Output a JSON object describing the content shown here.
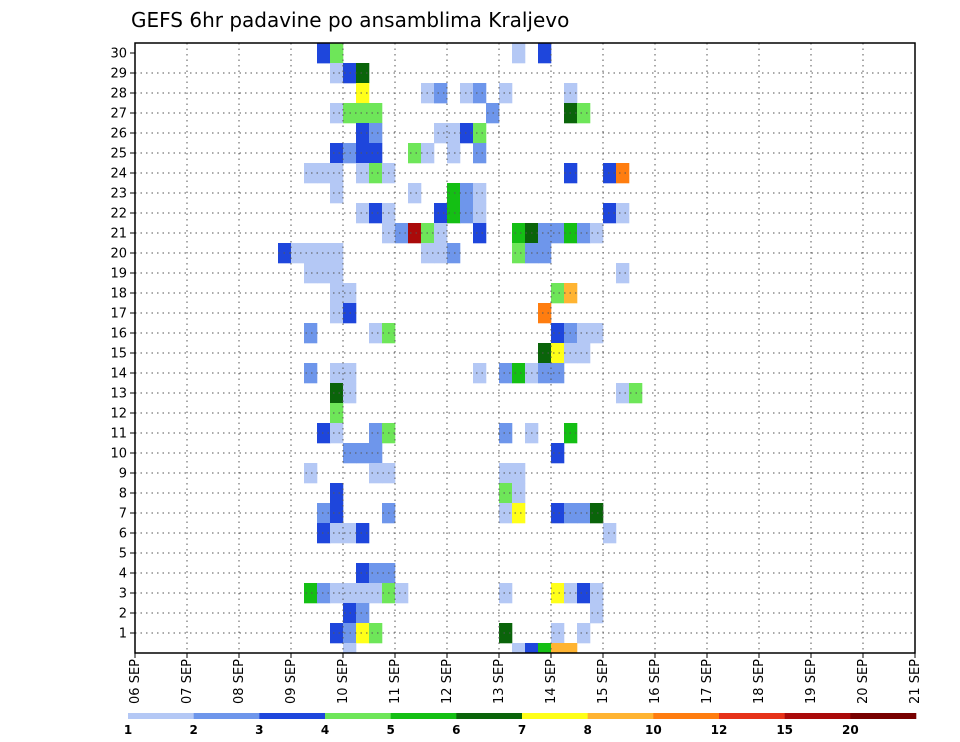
{
  "chart_data": {
    "type": "heatmap",
    "title": "GEFS 6hr padavine po ansamblima Kraljevo",
    "xlabel": "",
    "ylabel": "",
    "x_tick_labels": [
      "06 SEP",
      "07 SEP",
      "08 SEP",
      "09 SEP",
      "10 SEP",
      "11 SEP",
      "12 SEP",
      "13 SEP",
      "14 SEP",
      "15 SEP",
      "16 SEP",
      "17 SEP",
      "18 SEP",
      "19 SEP",
      "20 SEP",
      "21 SEP"
    ],
    "y_tick_labels": [
      "1",
      "2",
      "3",
      "4",
      "5",
      "6",
      "7",
      "8",
      "9",
      "10",
      "11",
      "12",
      "13",
      "14",
      "15",
      "16",
      "17",
      "18",
      "19",
      "20",
      "21",
      "22",
      "23",
      "24",
      "25",
      "26",
      "27",
      "28",
      "29",
      "30"
    ],
    "x_range_days": [
      0,
      15
    ],
    "step_days": 0.25,
    "y_range": [
      0,
      30
    ],
    "grid": true,
    "legend": {
      "position": "bottom",
      "thresholds": [
        "1",
        "2",
        "3",
        "4",
        "5",
        "6",
        "7",
        "8",
        "10",
        "12",
        "15",
        "20"
      ],
      "colors": [
        "#b4c8f5",
        "#6e96eb",
        "#1e46dc",
        "#6ee659",
        "#14bf14",
        "#0a640a",
        "#ffff19",
        "#ffb432",
        "#ff7d0f",
        "#e63219",
        "#aa0a0a",
        "#780000"
      ]
    },
    "cells": [
      [
        14,
        30,
        2
      ],
      [
        14,
        30,
        3
      ],
      [
        15,
        30,
        4
      ],
      [
        29,
        30,
        1
      ],
      [
        31,
        30,
        3
      ],
      [
        15,
        29,
        1
      ],
      [
        16,
        29,
        3
      ],
      [
        17,
        29,
        6
      ],
      [
        17,
        28,
        7
      ],
      [
        22,
        28,
        1
      ],
      [
        23,
        28,
        1
      ],
      [
        25,
        28,
        1
      ],
      [
        26,
        28,
        2
      ],
      [
        23,
        28,
        2
      ],
      [
        33,
        28,
        1
      ],
      [
        28,
        28,
        1
      ],
      [
        15,
        27,
        1
      ],
      [
        16,
        27,
        4
      ],
      [
        17,
        27,
        4
      ],
      [
        18,
        27,
        4
      ],
      [
        27,
        27,
        2
      ],
      [
        33,
        27,
        6
      ],
      [
        34,
        27,
        4
      ],
      [
        17,
        26,
        3
      ],
      [
        18,
        26,
        2
      ],
      [
        23,
        26,
        1
      ],
      [
        24,
        26,
        1
      ],
      [
        25,
        26,
        3
      ],
      [
        26,
        26,
        4
      ],
      [
        15,
        25,
        3
      ],
      [
        16,
        25,
        2
      ],
      [
        17,
        25,
        3
      ],
      [
        18,
        25,
        3
      ],
      [
        21,
        25,
        4
      ],
      [
        22,
        25,
        1
      ],
      [
        24,
        25,
        1
      ],
      [
        26,
        25,
        2
      ],
      [
        13,
        24,
        1
      ],
      [
        14,
        24,
        1
      ],
      [
        15,
        24,
        1
      ],
      [
        17,
        24,
        1
      ],
      [
        18,
        24,
        4
      ],
      [
        19,
        24,
        1
      ],
      [
        33,
        24,
        3
      ],
      [
        36,
        24,
        3
      ],
      [
        37,
        24,
        9
      ],
      [
        15,
        23,
        1
      ],
      [
        21,
        23,
        1
      ],
      [
        24,
        23,
        5
      ],
      [
        25,
        23,
        2
      ],
      [
        26,
        23,
        1
      ],
      [
        17,
        22,
        1
      ],
      [
        18,
        22,
        3
      ],
      [
        19,
        22,
        1
      ],
      [
        23,
        22,
        3
      ],
      [
        24,
        22,
        5
      ],
      [
        25,
        22,
        2
      ],
      [
        26,
        22,
        1
      ],
      [
        36,
        22,
        3
      ],
      [
        37,
        22,
        1
      ],
      [
        19,
        21,
        1
      ],
      [
        20,
        21,
        2
      ],
      [
        21,
        21,
        11
      ],
      [
        22,
        21,
        4
      ],
      [
        23,
        21,
        1
      ],
      [
        26,
        21,
        3
      ],
      [
        29,
        21,
        5
      ],
      [
        30,
        21,
        6
      ],
      [
        31,
        21,
        2
      ],
      [
        32,
        21,
        2
      ],
      [
        33,
        21,
        5
      ],
      [
        34,
        21,
        2
      ],
      [
        35,
        21,
        1
      ],
      [
        11,
        20,
        3
      ],
      [
        12,
        20,
        1
      ],
      [
        13,
        20,
        1
      ],
      [
        14,
        20,
        1
      ],
      [
        15,
        20,
        1
      ],
      [
        22,
        20,
        1
      ],
      [
        23,
        20,
        1
      ],
      [
        24,
        20,
        2
      ],
      [
        29,
        20,
        4
      ],
      [
        30,
        20,
        2
      ],
      [
        31,
        20,
        2
      ],
      [
        13,
        19,
        1
      ],
      [
        14,
        19,
        1
      ],
      [
        15,
        19,
        1
      ],
      [
        37,
        19,
        1
      ],
      [
        15,
        18,
        1
      ],
      [
        16,
        18,
        1
      ],
      [
        32,
        18,
        4
      ],
      [
        33,
        18,
        8
      ],
      [
        15,
        17,
        1
      ],
      [
        16,
        17,
        3
      ],
      [
        31,
        17,
        9
      ],
      [
        13,
        16,
        2
      ],
      [
        18,
        16,
        1
      ],
      [
        19,
        16,
        4
      ],
      [
        32,
        16,
        3
      ],
      [
        33,
        16,
        2
      ],
      [
        34,
        16,
        1
      ],
      [
        35,
        16,
        1
      ],
      [
        31,
        15,
        6
      ],
      [
        32,
        15,
        7
      ],
      [
        33,
        15,
        1
      ],
      [
        34,
        15,
        1
      ],
      [
        13,
        14,
        2
      ],
      [
        15,
        14,
        1
      ],
      [
        16,
        14,
        1
      ],
      [
        26,
        14,
        1
      ],
      [
        28,
        14,
        2
      ],
      [
        29,
        14,
        5
      ],
      [
        30,
        14,
        1
      ],
      [
        31,
        14,
        2
      ],
      [
        32,
        14,
        2
      ],
      [
        15,
        13,
        6
      ],
      [
        16,
        13,
        1
      ],
      [
        37,
        13,
        1
      ],
      [
        38,
        13,
        4
      ],
      [
        15,
        12,
        4
      ],
      [
        14,
        11,
        3
      ],
      [
        15,
        11,
        1
      ],
      [
        18,
        11,
        2
      ],
      [
        19,
        11,
        4
      ],
      [
        28,
        11,
        2
      ],
      [
        30,
        11,
        1
      ],
      [
        33,
        11,
        5
      ],
      [
        16,
        10,
        2
      ],
      [
        17,
        10,
        2
      ],
      [
        18,
        10,
        2
      ],
      [
        32,
        10,
        3
      ],
      [
        13,
        9,
        1
      ],
      [
        18,
        9,
        1
      ],
      [
        19,
        9,
        1
      ],
      [
        28,
        9,
        1
      ],
      [
        29,
        9,
        1
      ],
      [
        15,
        8,
        3
      ],
      [
        28,
        8,
        4
      ],
      [
        29,
        8,
        1
      ],
      [
        14,
        7,
        2
      ],
      [
        15,
        7,
        3
      ],
      [
        19,
        7,
        2
      ],
      [
        28,
        7,
        1
      ],
      [
        29,
        7,
        7
      ],
      [
        32,
        7,
        3
      ],
      [
        33,
        7,
        2
      ],
      [
        34,
        7,
        2
      ],
      [
        35,
        7,
        6
      ],
      [
        14,
        6,
        3
      ],
      [
        15,
        6,
        1
      ],
      [
        16,
        6,
        1
      ],
      [
        17,
        6,
        3
      ],
      [
        36,
        6,
        1
      ],
      [
        17,
        4,
        3
      ],
      [
        18,
        4,
        2
      ],
      [
        19,
        4,
        2
      ],
      [
        13,
        3,
        5
      ],
      [
        14,
        3,
        2
      ],
      [
        15,
        3,
        1
      ],
      [
        16,
        3,
        1
      ],
      [
        17,
        3,
        1
      ],
      [
        18,
        3,
        1
      ],
      [
        19,
        3,
        4
      ],
      [
        20,
        3,
        1
      ],
      [
        28,
        3,
        1
      ],
      [
        32,
        3,
        7
      ],
      [
        33,
        3,
        1
      ],
      [
        34,
        3,
        3
      ],
      [
        35,
        3,
        1
      ],
      [
        16,
        2,
        3
      ],
      [
        17,
        2,
        2
      ],
      [
        35,
        2,
        1
      ],
      [
        15,
        1,
        3
      ],
      [
        16,
        1,
        2
      ],
      [
        17,
        1,
        7
      ],
      [
        18,
        1,
        4
      ],
      [
        28,
        1,
        6
      ],
      [
        32,
        1,
        1
      ],
      [
        34,
        1,
        1
      ],
      [
        16,
        0,
        1
      ],
      [
        29,
        0,
        1
      ],
      [
        30,
        0,
        3
      ],
      [
        31,
        0,
        5
      ],
      [
        32,
        0,
        8
      ],
      [
        33,
        0,
        8
      ]
    ]
  }
}
